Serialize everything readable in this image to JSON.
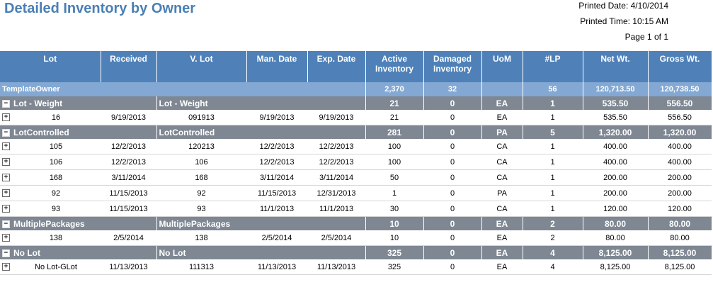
{
  "report": {
    "title": "Detailed Inventory by Owner",
    "printed_date": "Printed Date: 4/10/2014",
    "printed_time": "Printed Time: 10:15 AM",
    "page": "Page 1 of 1"
  },
  "columns": {
    "lot": "Lot",
    "received": "Received",
    "vlot": "V. Lot",
    "man_date": "Man. Date",
    "exp_date": "Exp. Date",
    "active": "Active Inventory",
    "damaged": "Damaged Inventory",
    "uom": "UoM",
    "lp": "#LP",
    "net": "Net Wt.",
    "gross": "Gross Wt."
  },
  "owner": {
    "name": "TemplateOwner",
    "active": "2,370",
    "damaged": "32",
    "lp": "56",
    "net": "120,713.50",
    "gross": "120,738.50"
  },
  "groups": [
    {
      "toggle": "−",
      "name": "Lot - Weight",
      "vlot": "Lot - Weight",
      "active": "21",
      "damaged": "0",
      "uom": "EA",
      "lp": "1",
      "net": "535.50",
      "gross": "556.50",
      "rows": [
        {
          "toggle": "+",
          "lot": "16",
          "received": "9/19/2013",
          "vlot": "091913",
          "man": "9/19/2013",
          "exp": "9/19/2013",
          "active": "21",
          "damaged": "0",
          "uom": "EA",
          "lp": "1",
          "net": "535.50",
          "gross": "556.50"
        }
      ]
    },
    {
      "toggle": "−",
      "name": "LotControlled",
      "vlot": "LotControlled",
      "active": "281",
      "damaged": "0",
      "uom": "PA",
      "lp": "5",
      "net": "1,320.00",
      "gross": "1,320.00",
      "rows": [
        {
          "toggle": "+",
          "lot": "105",
          "received": "12/2/2013",
          "vlot": "120213",
          "man": "12/2/2013",
          "exp": "12/2/2013",
          "active": "100",
          "damaged": "0",
          "uom": "CA",
          "lp": "1",
          "net": "400.00",
          "gross": "400.00"
        },
        {
          "toggle": "+",
          "lot": "106",
          "received": "12/2/2013",
          "vlot": "106",
          "man": "12/2/2013",
          "exp": "12/2/2013",
          "active": "100",
          "damaged": "0",
          "uom": "CA",
          "lp": "1",
          "net": "400.00",
          "gross": "400.00"
        },
        {
          "toggle": "+",
          "lot": "168",
          "received": "3/11/2014",
          "vlot": "168",
          "man": "3/11/2014",
          "exp": "3/11/2014",
          "active": "50",
          "damaged": "0",
          "uom": "CA",
          "lp": "1",
          "net": "200.00",
          "gross": "200.00"
        },
        {
          "toggle": "+",
          "lot": "92",
          "received": "11/15/2013",
          "vlot": "92",
          "man": "11/15/2013",
          "exp": "12/31/2013",
          "active": "1",
          "damaged": "0",
          "uom": "PA",
          "lp": "1",
          "net": "200.00",
          "gross": "200.00"
        },
        {
          "toggle": "+",
          "lot": "93",
          "received": "11/15/2013",
          "vlot": "93",
          "man": "11/1/2013",
          "exp": "11/1/2013",
          "active": "30",
          "damaged": "0",
          "uom": "CA",
          "lp": "1",
          "net": "120.00",
          "gross": "120.00"
        }
      ]
    },
    {
      "toggle": "−",
      "name": "MultiplePackages",
      "vlot": "MultiplePackages",
      "active": "10",
      "damaged": "0",
      "uom": "EA",
      "lp": "2",
      "net": "80.00",
      "gross": "80.00",
      "rows": [
        {
          "toggle": "+",
          "lot": "138",
          "received": "2/5/2014",
          "vlot": "138",
          "man": "2/5/2014",
          "exp": "2/5/2014",
          "active": "10",
          "damaged": "0",
          "uom": "EA",
          "lp": "2",
          "net": "80.00",
          "gross": "80.00"
        }
      ]
    },
    {
      "toggle": "−",
      "name": "No Lot",
      "vlot": "No Lot",
      "active": "325",
      "damaged": "0",
      "uom": "EA",
      "lp": "4",
      "net": "8,125.00",
      "gross": "8,125.00",
      "rows": [
        {
          "toggle": "+",
          "lot": "No Lot-GLot",
          "received": "11/13/2013",
          "vlot": "111313",
          "man": "11/13/2013",
          "exp": "11/13/2013",
          "active": "325",
          "damaged": "0",
          "uom": "EA",
          "lp": "4",
          "net": "8,125.00",
          "gross": "8,125.00"
        }
      ]
    }
  ]
}
